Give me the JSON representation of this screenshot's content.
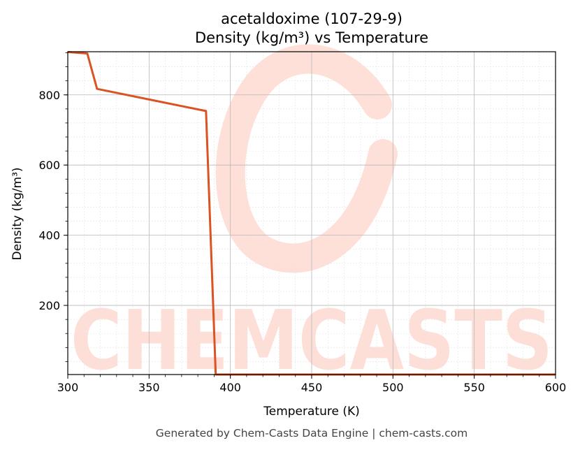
{
  "chart_data": {
    "type": "line",
    "title": "acetaldoxime (107-29-9)",
    "subtitle": "Density (kg/m³) vs Temperature",
    "xlabel": "Temperature (K)",
    "ylabel": "Density (kg/m³)",
    "xlim": [
      300,
      600
    ],
    "ylim": [
      3,
      923
    ],
    "x_ticks": [
      300,
      350,
      400,
      450,
      500,
      550,
      600
    ],
    "y_ticks": [
      200,
      400,
      600,
      800
    ],
    "grid": true,
    "legend": "none",
    "series": [
      {
        "color": "#d95323",
        "x": [
          300,
          312,
          318,
          385,
          391,
          600
        ],
        "y": [
          922,
          918,
          817,
          754,
          3,
          3
        ]
      }
    ]
  },
  "watermark": {
    "text": "CHEMCASTS",
    "color": "#fdd5cb"
  },
  "footer": "Generated by Chem-Casts Data Engine | chem-casts.com"
}
